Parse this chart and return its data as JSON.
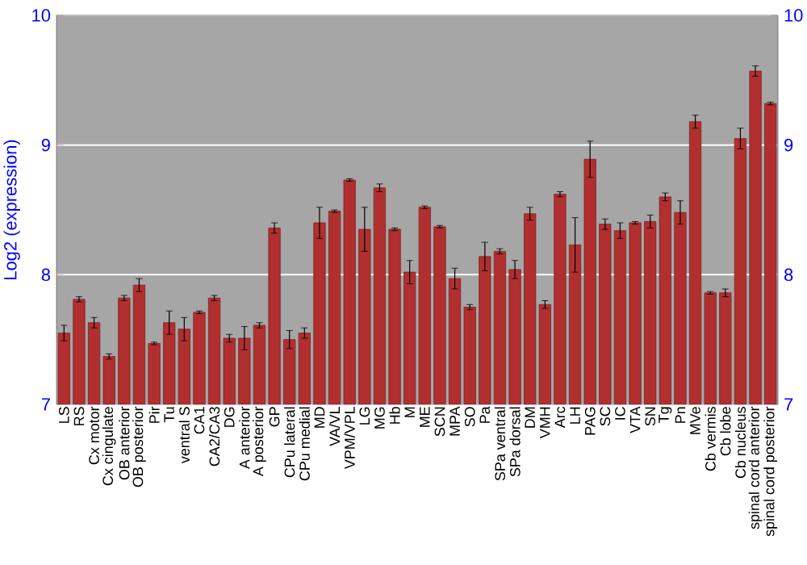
{
  "chart_data": {
    "type": "bar",
    "ylabel": "Log2 (expression)",
    "categories": [
      "LS",
      "RS",
      "Cx motor",
      "Cx cingulate",
      "OB anterior",
      "OB posterior",
      "Pir",
      "Tu",
      "ventral S",
      "CA1",
      "CA2/CA3",
      "DG",
      "A anterior",
      "A posterior",
      "GP",
      "CPu lateral",
      "CPu medial",
      "MD",
      "VA/VL",
      "VPM/VPL",
      "LG",
      "MG",
      "Hb",
      "M",
      "ME",
      "SCN",
      "MPA",
      "SO",
      "Pa",
      "SPa ventral",
      "SPa dorsal",
      "DM",
      "VMH",
      "Arc",
      "LH",
      "PAG",
      "SC",
      "IC",
      "VTA",
      "SN",
      "Tg",
      "Pn",
      "MVe",
      "Cb vermis",
      "Cb lobe",
      "Cb nucleus",
      "spinal cord anterior",
      "spinal cord posterior"
    ],
    "values": [
      7.55,
      7.81,
      7.63,
      7.37,
      7.82,
      7.92,
      7.47,
      7.63,
      7.58,
      7.71,
      7.82,
      7.51,
      7.51,
      7.61,
      8.36,
      7.5,
      7.55,
      8.4,
      8.49,
      8.73,
      8.35,
      8.67,
      8.35,
      8.02,
      8.52,
      8.37,
      7.97,
      7.75,
      8.14,
      8.18,
      8.04,
      8.47,
      7.77,
      8.62,
      8.23,
      8.89,
      8.39,
      8.34,
      8.4,
      8.41,
      8.6,
      8.48,
      9.18,
      7.86,
      7.86,
      9.05,
      9.57,
      9.32
    ],
    "errors": [
      0.06,
      0.02,
      0.04,
      0.02,
      0.02,
      0.05,
      0.01,
      0.09,
      0.09,
      0.01,
      0.02,
      0.03,
      0.09,
      0.02,
      0.04,
      0.07,
      0.04,
      0.12,
      0.01,
      0.01,
      0.17,
      0.03,
      0.01,
      0.09,
      0.01,
      0.01,
      0.08,
      0.02,
      0.11,
      0.02,
      0.07,
      0.05,
      0.03,
      0.02,
      0.21,
      0.14,
      0.04,
      0.06,
      0.01,
      0.05,
      0.03,
      0.09,
      0.05,
      0.01,
      0.03,
      0.08,
      0.04,
      0.01
    ],
    "color": "#b22f2f",
    "ylim": [
      7,
      10
    ],
    "yticks": [
      7,
      8,
      9,
      10
    ],
    "y2lim": [
      7,
      10
    ],
    "y2ticks": [
      7,
      8,
      9,
      10
    ],
    "grid": "y"
  }
}
